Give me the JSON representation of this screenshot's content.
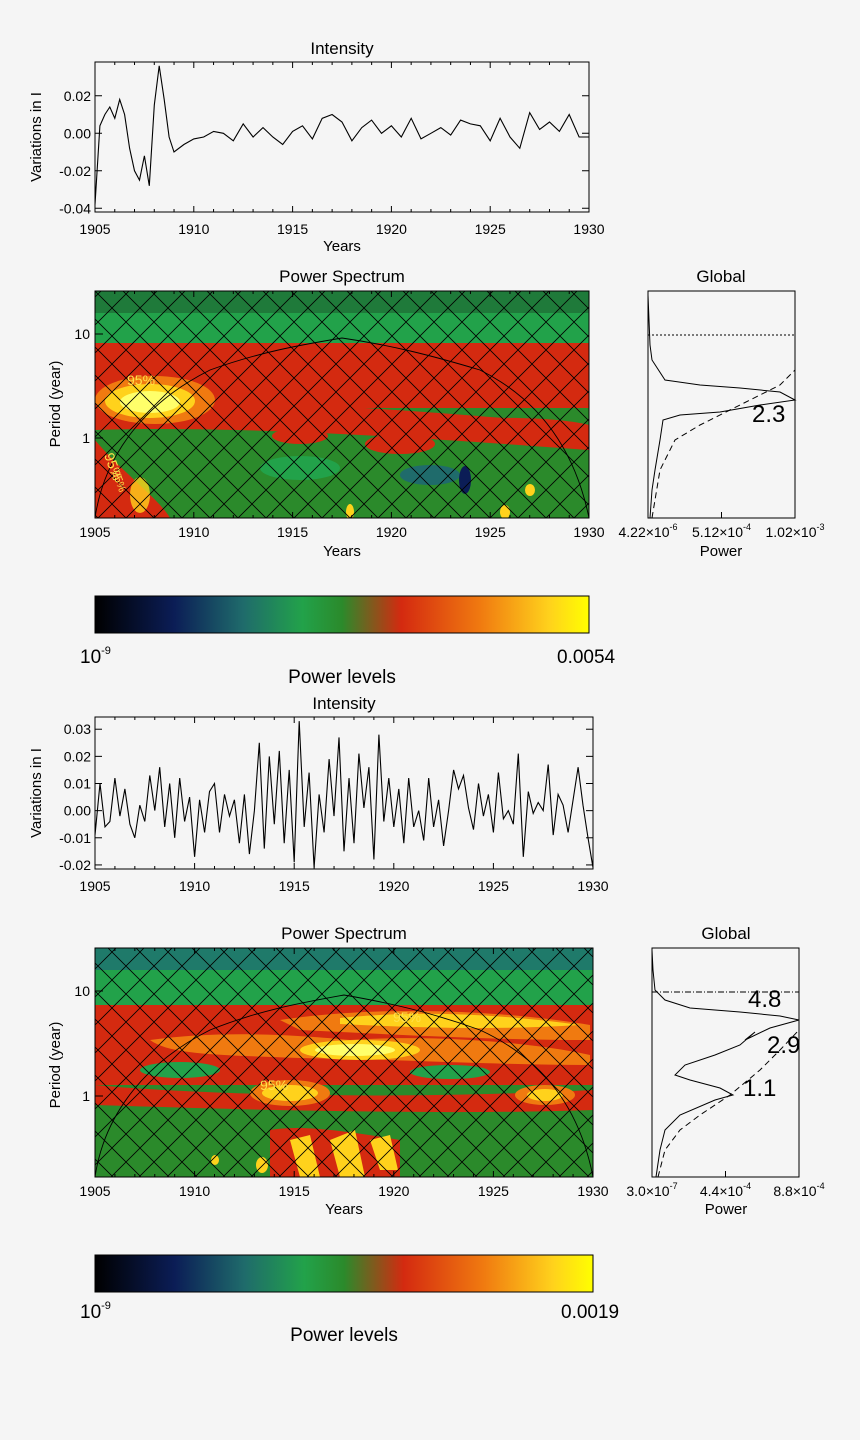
{
  "chart_data": [
    {
      "type": "line",
      "title": "Intensity",
      "xlabel": "Years",
      "ylabel": "Variations in I",
      "xlim": [
        1905,
        1930
      ],
      "ylim": [
        -0.042,
        0.038
      ],
      "xticks": [
        "1905",
        "1910",
        "1915",
        "1920",
        "1925",
        "1930"
      ],
      "yticks": [
        "0.02",
        "0.00",
        "-0.02",
        "-0.04"
      ],
      "x": [
        1905.0,
        1905.25,
        1905.5,
        1905.75,
        1906.0,
        1906.25,
        1906.5,
        1906.75,
        1907.0,
        1907.25,
        1907.5,
        1907.75,
        1908.0,
        1908.25,
        1908.5,
        1908.75,
        1909.0,
        1909.5,
        1910.0,
        1910.5,
        1911.0,
        1911.5,
        1912.0,
        1912.5,
        1913.0,
        1913.5,
        1914.0,
        1914.5,
        1915.0,
        1915.5,
        1916.0,
        1916.5,
        1917.0,
        1917.5,
        1918.0,
        1918.5,
        1919.0,
        1919.5,
        1920.0,
        1920.5,
        1921.0,
        1921.5,
        1922.0,
        1922.5,
        1923.0,
        1923.5,
        1924.0,
        1924.5,
        1925.0,
        1925.5,
        1926.0,
        1926.5,
        1927.0,
        1927.5,
        1928.0,
        1928.5,
        1929.0,
        1929.5,
        1930.0
      ],
      "values": [
        -0.038,
        0.004,
        0.01,
        0.014,
        0.008,
        0.018,
        0.01,
        -0.008,
        -0.02,
        -0.025,
        -0.012,
        -0.028,
        0.015,
        0.036,
        0.018,
        -0.002,
        -0.01,
        -0.006,
        -0.003,
        -0.002,
        0.001,
        0.0,
        -0.004,
        0.005,
        -0.002,
        0.003,
        -0.002,
        -0.006,
        0.001,
        0.004,
        -0.003,
        0.008,
        0.01,
        0.006,
        -0.004,
        0.003,
        0.007,
        0.0,
        0.004,
        -0.002,
        0.008,
        -0.003,
        0.0,
        0.003,
        -0.001,
        0.007,
        0.005,
        0.004,
        -0.004,
        0.008,
        -0.002,
        -0.008,
        0.011,
        0.002,
        0.006,
        0.001,
        0.01,
        -0.002,
        -0.002
      ]
    },
    {
      "type": "heatmap",
      "title": "Power Spectrum",
      "xlabel": "Years",
      "ylabel": "Period (year)",
      "xlim": [
        1905,
        1930
      ],
      "xticks": [
        "1905",
        "1910",
        "1915",
        "1920",
        "1925",
        "1930"
      ],
      "yticks": [
        "10",
        "1"
      ],
      "annotations": [
        "95%",
        "95%",
        "95%"
      ]
    },
    {
      "type": "line",
      "title": "Global",
      "xlabel": "Power",
      "xticks": [
        "4.22×10-6",
        "5.12×10-4",
        "1.02×10-3"
      ],
      "xtick_parts": [
        [
          "4.22×10",
          "-6"
        ],
        [
          "5.12×10",
          "-4"
        ],
        [
          "1.02×10",
          "-3"
        ]
      ],
      "peak_labels": [
        "2.3"
      ]
    },
    {
      "type": "heatmap",
      "title": "Power levels",
      "min_label": "10",
      "min_exp": "-9",
      "max_label": "0.0054"
    },
    {
      "type": "line",
      "title": "Intensity",
      "xlabel": "",
      "ylabel": "Variations in I",
      "xlim": [
        1905,
        1930
      ],
      "ylim": [
        -0.0215,
        0.0345
      ],
      "xticks": [
        "1905",
        "1910",
        "1915",
        "1920",
        "1925",
        "1930"
      ],
      "yticks": [
        "0.03",
        "0.02",
        "0.01",
        "0.00",
        "-0.01",
        "-0.02"
      ],
      "x": [
        1905.0,
        1905.25,
        1905.5,
        1905.75,
        1906.0,
        1906.25,
        1906.5,
        1906.75,
        1907.0,
        1907.25,
        1907.5,
        1907.75,
        1908.0,
        1908.25,
        1908.5,
        1908.75,
        1909.0,
        1909.25,
        1909.5,
        1909.75,
        1910.0,
        1910.25,
        1910.5,
        1910.75,
        1911.0,
        1911.25,
        1911.5,
        1911.75,
        1912.0,
        1912.25,
        1912.5,
        1912.75,
        1913.0,
        1913.25,
        1913.5,
        1913.75,
        1914.0,
        1914.25,
        1914.5,
        1914.75,
        1915.0,
        1915.25,
        1915.5,
        1915.75,
        1916.0,
        1916.25,
        1916.5,
        1916.75,
        1917.0,
        1917.25,
        1917.5,
        1917.75,
        1918.0,
        1918.25,
        1918.5,
        1918.75,
        1919.0,
        1919.25,
        1919.5,
        1919.75,
        1920.0,
        1920.25,
        1920.5,
        1920.75,
        1921.0,
        1921.25,
        1921.5,
        1921.75,
        1922.0,
        1922.25,
        1922.5,
        1922.75,
        1923.0,
        1923.25,
        1923.5,
        1923.75,
        1924.0,
        1924.25,
        1924.5,
        1924.75,
        1925.0,
        1925.25,
        1925.5,
        1925.75,
        1926.0,
        1926.25,
        1926.5,
        1926.75,
        1927.0,
        1927.25,
        1927.5,
        1927.75,
        1928.0,
        1928.25,
        1928.5,
        1928.75,
        1929.0,
        1929.25,
        1929.5,
        1929.75,
        1930.0
      ],
      "values": [
        -0.009,
        0.01,
        -0.006,
        -0.004,
        0.012,
        -0.002,
        0.008,
        -0.005,
        -0.01,
        0.002,
        -0.004,
        0.013,
        0.0,
        0.016,
        -0.006,
        0.01,
        -0.01,
        0.012,
        -0.004,
        0.005,
        -0.017,
        0.004,
        -0.008,
        0.007,
        0.01,
        -0.008,
        0.006,
        -0.002,
        0.004,
        -0.012,
        0.006,
        -0.016,
        0.0,
        0.025,
        -0.014,
        0.02,
        -0.005,
        0.022,
        -0.012,
        0.015,
        -0.019,
        0.033,
        -0.006,
        0.014,
        -0.021,
        0.006,
        -0.008,
        0.019,
        -0.002,
        0.027,
        -0.015,
        0.012,
        -0.012,
        0.021,
        0.001,
        0.016,
        -0.018,
        0.028,
        -0.004,
        0.012,
        -0.006,
        0.008,
        -0.012,
        0.012,
        -0.006,
        0.0,
        -0.011,
        0.012,
        -0.006,
        0.004,
        -0.013,
        0.0,
        0.015,
        0.008,
        0.013,
        0.001,
        -0.007,
        0.01,
        -0.002,
        0.006,
        -0.008,
        0.014,
        -0.003,
        0.0,
        -0.005,
        0.021,
        -0.017,
        0.007,
        -0.001,
        0.003,
        0.0,
        0.017,
        -0.009,
        0.006,
        0.002,
        -0.008,
        0.004,
        0.016,
        0.002,
        -0.01,
        -0.021
      ]
    },
    {
      "type": "heatmap",
      "title": "Power Spectrum",
      "xlabel": "Years",
      "ylabel": "Period (year)",
      "xlim": [
        1905,
        1930
      ],
      "xticks": [
        "1905",
        "1910",
        "1915",
        "1920",
        "1925",
        "1930"
      ],
      "yticks": [
        "10",
        "1"
      ],
      "annotations": [
        "95%",
        "95%"
      ]
    },
    {
      "type": "line",
      "title": "Global",
      "xlabel": "Power",
      "xticks": [
        "3.0×10-7",
        "4.4×10-4",
        "8.8×10-4"
      ],
      "xtick_parts": [
        [
          "3.0×10",
          "-7"
        ],
        [
          "4.4×10",
          "-4"
        ],
        [
          "8.8×10",
          "-4"
        ]
      ],
      "peak_labels": [
        "4.8",
        "2.9",
        "1.1"
      ]
    },
    {
      "type": "heatmap",
      "title": "Power levels",
      "min_label": "10",
      "min_exp": "-9",
      "max_label": "0.0019"
    }
  ],
  "colors": {
    "background": "#f5f5f5",
    "scale": [
      "#000000",
      "#0b1d56",
      "#1f6b6b",
      "#22a24a",
      "#2b8a2b",
      "#d42a10",
      "#f07a10",
      "#ffd21c",
      "#ffff00"
    ],
    "contour": "#ffe680",
    "annotation": "#ffe14a"
  }
}
